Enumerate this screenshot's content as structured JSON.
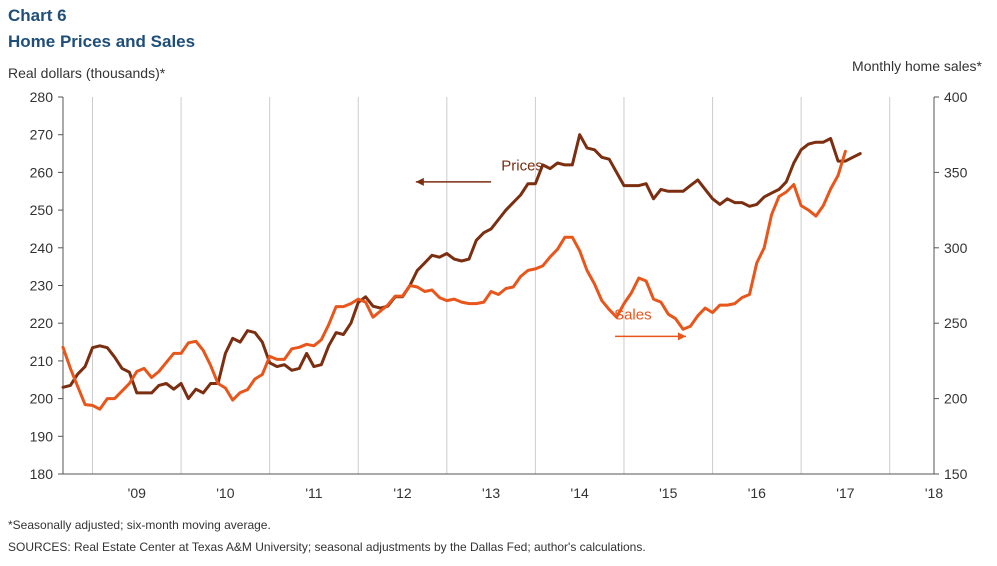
{
  "header": {
    "chart_number": "Chart 6",
    "title": "Home Prices and Sales"
  },
  "footer": {
    "footnote": "*Seasonally adjusted; six-month moving average.",
    "sources": "SOURCES: Real Estate Center at Texas A&M University; seasonal adjustments by the Dallas Fed; author's calculations."
  },
  "colors": {
    "prices": "#7b2e10",
    "sales": "#e8561b",
    "axis": "#555555"
  },
  "chart_data": {
    "type": "line",
    "ylabel": "Real dollars (thousands)*",
    "y2label": "Monthly home sales*",
    "ylim": [
      180,
      280
    ],
    "y2lim": [
      150,
      400
    ],
    "yticks": [
      180,
      190,
      200,
      210,
      220,
      230,
      240,
      250,
      260,
      270,
      280
    ],
    "y2ticks": [
      150,
      200,
      250,
      300,
      350,
      400
    ],
    "xlim": [
      2008.667,
      2018.5
    ],
    "xticks": [
      {
        "label": "'09",
        "pos": 2009.5
      },
      {
        "label": "'10",
        "pos": 2010.5
      },
      {
        "label": "'11",
        "pos": 2011.5
      },
      {
        "label": "'12",
        "pos": 2012.5
      },
      {
        "label": "'13",
        "pos": 2013.5
      },
      {
        "label": "'14",
        "pos": 2014.5
      },
      {
        "label": "'15",
        "pos": 2015.5
      },
      {
        "label": "'16",
        "pos": 2016.5
      },
      {
        "label": "'17",
        "pos": 2017.5
      },
      {
        "label": "'18",
        "pos": 2018.5
      }
    ],
    "xgridlines": [
      2009.0,
      2010.0,
      2011.0,
      2012.0,
      2013.0,
      2014.0,
      2015.0,
      2016.0,
      2017.0,
      2018.0
    ],
    "annotations": [
      {
        "text": "Prices",
        "series": "prices",
        "x": 2013.85,
        "y": 260.5,
        "arrow_from": [
          2013.5,
          257.5
        ],
        "arrow_to": [
          2012.65,
          257.5
        ]
      },
      {
        "text": "Sales",
        "series": "sales",
        "x": 2015.1,
        "y": 221.0,
        "arrow_from": [
          2014.9,
          216.5
        ],
        "arrow_to": [
          2015.7,
          216.5
        ]
      }
    ],
    "series": [
      {
        "name": "Prices",
        "key": "prices",
        "axis": "left",
        "points": [
          [
            2008.667,
            203
          ],
          [
            2008.75,
            203.5
          ],
          [
            2008.833,
            206.5
          ],
          [
            2008.917,
            208.5
          ],
          [
            2009.0,
            213.5
          ],
          [
            2009.083,
            214
          ],
          [
            2009.167,
            213.5
          ],
          [
            2009.25,
            211
          ],
          [
            2009.333,
            208
          ],
          [
            2009.417,
            207
          ],
          [
            2009.5,
            201.5
          ],
          [
            2009.583,
            201.5
          ],
          [
            2009.667,
            201.5
          ],
          [
            2009.75,
            203.5
          ],
          [
            2009.833,
            204
          ],
          [
            2009.917,
            202.5
          ],
          [
            2010.0,
            204
          ],
          [
            2010.083,
            200
          ],
          [
            2010.167,
            202.5
          ],
          [
            2010.25,
            201.5
          ],
          [
            2010.333,
            204
          ],
          [
            2010.417,
            204
          ],
          [
            2010.5,
            212
          ],
          [
            2010.583,
            216
          ],
          [
            2010.667,
            215
          ],
          [
            2010.75,
            218
          ],
          [
            2010.833,
            217.5
          ],
          [
            2010.917,
            215
          ],
          [
            2011.0,
            209.5
          ],
          [
            2011.083,
            208.5
          ],
          [
            2011.167,
            209
          ],
          [
            2011.25,
            207.5
          ],
          [
            2011.333,
            208
          ],
          [
            2011.417,
            212
          ],
          [
            2011.5,
            208.5
          ],
          [
            2011.583,
            209
          ],
          [
            2011.667,
            214
          ],
          [
            2011.75,
            217.5
          ],
          [
            2011.833,
            217
          ],
          [
            2011.917,
            220
          ],
          [
            2012.0,
            225.5
          ],
          [
            2012.083,
            227
          ],
          [
            2012.167,
            224.5
          ],
          [
            2012.25,
            224
          ],
          [
            2012.333,
            224.5
          ],
          [
            2012.417,
            227
          ],
          [
            2012.5,
            227
          ],
          [
            2012.583,
            230
          ],
          [
            2012.667,
            234
          ],
          [
            2012.75,
            236
          ],
          [
            2012.833,
            238
          ],
          [
            2012.917,
            237.5
          ],
          [
            2013.0,
            238.5
          ],
          [
            2013.083,
            237
          ],
          [
            2013.167,
            236.5
          ],
          [
            2013.25,
            237
          ],
          [
            2013.333,
            242
          ],
          [
            2013.417,
            244
          ],
          [
            2013.5,
            245
          ],
          [
            2013.583,
            247.5
          ],
          [
            2013.667,
            250
          ],
          [
            2013.75,
            252
          ],
          [
            2013.833,
            254
          ],
          [
            2013.917,
            257
          ],
          [
            2014.0,
            257
          ],
          [
            2014.083,
            262
          ],
          [
            2014.167,
            261
          ],
          [
            2014.25,
            262.5
          ],
          [
            2014.333,
            262
          ],
          [
            2014.417,
            262
          ],
          [
            2014.5,
            270
          ],
          [
            2014.583,
            266.5
          ],
          [
            2014.667,
            266
          ],
          [
            2014.75,
            264
          ],
          [
            2014.833,
            263.5
          ],
          [
            2014.917,
            260
          ],
          [
            2015.0,
            256.5
          ],
          [
            2015.083,
            256.5
          ],
          [
            2015.167,
            256.5
          ],
          [
            2015.25,
            257
          ],
          [
            2015.333,
            253
          ],
          [
            2015.417,
            255.5
          ],
          [
            2015.5,
            255
          ],
          [
            2015.583,
            255
          ],
          [
            2015.667,
            255
          ],
          [
            2015.75,
            256.5
          ],
          [
            2015.833,
            258
          ],
          [
            2015.917,
            255.5
          ],
          [
            2016.0,
            253
          ],
          [
            2016.083,
            251.5
          ],
          [
            2016.167,
            253
          ],
          [
            2016.25,
            252
          ],
          [
            2016.333,
            252
          ],
          [
            2016.417,
            251
          ],
          [
            2016.5,
            251.5
          ],
          [
            2016.583,
            253.5
          ],
          [
            2016.667,
            254.5
          ],
          [
            2016.75,
            255.5
          ],
          [
            2016.833,
            257.5
          ],
          [
            2016.917,
            262.5
          ],
          [
            2017.0,
            266
          ],
          [
            2017.083,
            267.5
          ],
          [
            2017.167,
            268
          ],
          [
            2017.25,
            268
          ],
          [
            2017.333,
            269
          ],
          [
            2017.417,
            263
          ],
          [
            2017.5,
            263
          ],
          [
            2017.583,
            264
          ],
          [
            2017.667,
            265
          ]
        ]
      },
      {
        "name": "Sales",
        "key": "sales",
        "axis": "right",
        "points": [
          [
            2008.667,
            234
          ],
          [
            2008.75,
            220
          ],
          [
            2008.833,
            208
          ],
          [
            2008.917,
            196
          ],
          [
            2009.0,
            195.5
          ],
          [
            2009.083,
            193
          ],
          [
            2009.167,
            200
          ],
          [
            2009.25,
            200
          ],
          [
            2009.333,
            205
          ],
          [
            2009.417,
            210
          ],
          [
            2009.5,
            218
          ],
          [
            2009.583,
            220
          ],
          [
            2009.667,
            214
          ],
          [
            2009.75,
            218
          ],
          [
            2009.833,
            224
          ],
          [
            2009.917,
            230
          ],
          [
            2010.0,
            230
          ],
          [
            2010.083,
            237
          ],
          [
            2010.167,
            238
          ],
          [
            2010.25,
            232
          ],
          [
            2010.333,
            222
          ],
          [
            2010.417,
            210
          ],
          [
            2010.5,
            207
          ],
          [
            2010.583,
            199
          ],
          [
            2010.667,
            204
          ],
          [
            2010.75,
            206
          ],
          [
            2010.833,
            213
          ],
          [
            2010.917,
            216
          ],
          [
            2011.0,
            228
          ],
          [
            2011.083,
            226
          ],
          [
            2011.167,
            226
          ],
          [
            2011.25,
            233
          ],
          [
            2011.333,
            234
          ],
          [
            2011.417,
            236
          ],
          [
            2011.5,
            235
          ],
          [
            2011.583,
            239
          ],
          [
            2011.667,
            249
          ],
          [
            2011.75,
            261
          ],
          [
            2011.833,
            261
          ],
          [
            2011.917,
            263
          ],
          [
            2012.0,
            266
          ],
          [
            2012.083,
            264
          ],
          [
            2012.167,
            254
          ],
          [
            2012.25,
            258
          ],
          [
            2012.333,
            262
          ],
          [
            2012.417,
            268
          ],
          [
            2012.5,
            268
          ],
          [
            2012.583,
            275
          ],
          [
            2012.667,
            274
          ],
          [
            2012.75,
            271
          ],
          [
            2012.833,
            272
          ],
          [
            2012.917,
            267
          ],
          [
            2013.0,
            265
          ],
          [
            2013.083,
            266
          ],
          [
            2013.167,
            264
          ],
          [
            2013.25,
            263
          ],
          [
            2013.333,
            263
          ],
          [
            2013.417,
            264
          ],
          [
            2013.5,
            271
          ],
          [
            2013.583,
            269
          ],
          [
            2013.667,
            273
          ],
          [
            2013.75,
            274
          ],
          [
            2013.833,
            281
          ],
          [
            2013.917,
            285
          ],
          [
            2014.0,
            286
          ],
          [
            2014.083,
            288
          ],
          [
            2014.167,
            294
          ],
          [
            2014.25,
            299
          ],
          [
            2014.333,
            307
          ],
          [
            2014.417,
            307
          ],
          [
            2014.5,
            298
          ],
          [
            2014.583,
            285
          ],
          [
            2014.667,
            276
          ],
          [
            2014.75,
            265
          ],
          [
            2014.833,
            259
          ],
          [
            2014.917,
            254
          ],
          [
            2015.0,
            263
          ],
          [
            2015.083,
            270
          ],
          [
            2015.167,
            280
          ],
          [
            2015.25,
            278
          ],
          [
            2015.333,
            266
          ],
          [
            2015.417,
            264
          ],
          [
            2015.5,
            256
          ],
          [
            2015.583,
            253
          ],
          [
            2015.667,
            246
          ],
          [
            2015.75,
            248
          ],
          [
            2015.833,
            255
          ],
          [
            2015.917,
            260
          ],
          [
            2016.0,
            257
          ],
          [
            2016.083,
            262
          ],
          [
            2016.167,
            262
          ],
          [
            2016.25,
            263
          ],
          [
            2016.333,
            267
          ],
          [
            2016.417,
            269
          ],
          [
            2016.5,
            290
          ],
          [
            2016.583,
            300
          ],
          [
            2016.667,
            322
          ],
          [
            2016.75,
            334
          ],
          [
            2016.833,
            337
          ],
          [
            2016.917,
            342
          ],
          [
            2017.0,
            328
          ],
          [
            2017.083,
            325
          ],
          [
            2017.167,
            321
          ],
          [
            2017.25,
            328
          ],
          [
            2017.333,
            339
          ],
          [
            2017.417,
            348
          ],
          [
            2017.5,
            364
          ]
        ]
      }
    ]
  }
}
